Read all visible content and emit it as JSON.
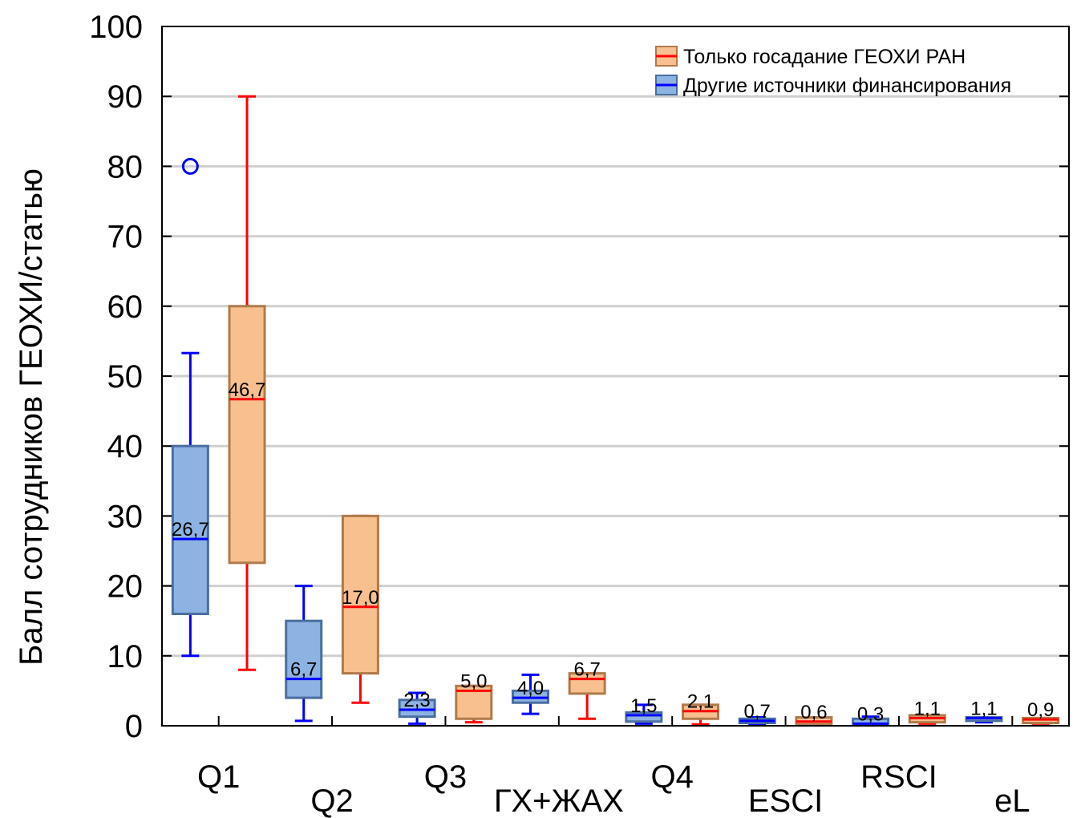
{
  "chart_data": {
    "type": "box",
    "ylabel": "Балл сотрудников ГЕОХИ/статью",
    "ylim": [
      0,
      100
    ],
    "yticks": [
      "0",
      "10",
      "20",
      "30",
      "40",
      "50",
      "60",
      "70",
      "80",
      "90",
      "100"
    ],
    "grid": true,
    "legend_position": "top-right",
    "categories": [
      "Q1",
      "Q2",
      "Q3",
      "ГХ+ЖАХ",
      "Q4",
      "ESCI",
      "RSCI",
      "eL"
    ],
    "series": [
      {
        "name": "Только госадание ГЕОХИ РАН",
        "box_color": "#f8c08f",
        "median_color": "#ff0000",
        "whisker_color": "#ff0000",
        "boxes": [
          {
            "min": 8,
            "q1": 23.3,
            "median": 46.7,
            "q3": 60,
            "max": 90,
            "median_label": "46,7"
          },
          {
            "min": 3.3,
            "q1": 7.5,
            "median": 17.0,
            "q3": 30,
            "max": 30,
            "median_label": "17,0"
          },
          {
            "min": 0.5,
            "q1": 1.0,
            "median": 5.0,
            "q3": 5.7,
            "max": 5.7,
            "median_label": "5,0"
          },
          {
            "min": 1.0,
            "q1": 4.6,
            "median": 6.7,
            "q3": 7.5,
            "max": 7.5,
            "median_label": "6,7"
          },
          {
            "min": 0.2,
            "q1": 1.0,
            "median": 2.1,
            "q3": 3.0,
            "max": 3.0,
            "median_label": "2,1"
          },
          {
            "min": 0.1,
            "q1": 0.2,
            "median": 0.6,
            "q3": 1.2,
            "max": 1.2,
            "median_label": "0,6"
          },
          {
            "min": 0.3,
            "q1": 0.5,
            "median": 1.1,
            "q3": 1.5,
            "max": 1.5,
            "median_label": "1,1"
          },
          {
            "min": 0.3,
            "q1": 0.4,
            "median": 0.9,
            "q3": 1.1,
            "max": 1.1,
            "median_label": "0,9"
          }
        ]
      },
      {
        "name": "Другие источники финансирования",
        "box_color": "#8db3e2",
        "median_color": "#0000ff",
        "whisker_color": "#0000ff",
        "boxes": [
          {
            "min": 10,
            "q1": 16,
            "median": 26.7,
            "q3": 40,
            "max": 53.3,
            "median_label": "26,7",
            "outliers": [
              80
            ]
          },
          {
            "min": 0.7,
            "q1": 4.0,
            "median": 6.7,
            "q3": 15,
            "max": 20,
            "median_label": "6,7"
          },
          {
            "min": 0.3,
            "q1": 1.3,
            "median": 2.3,
            "q3": 3.7,
            "max": 4.7,
            "median_label": "2,3"
          },
          {
            "min": 1.7,
            "q1": 3.3,
            "median": 4.0,
            "q3": 5.0,
            "max": 7.3,
            "median_label": "4,0"
          },
          {
            "min": 0.3,
            "q1": 0.6,
            "median": 1.5,
            "q3": 1.9,
            "max": 3.0,
            "median_label": "1,5"
          },
          {
            "min": 0.2,
            "q1": 0.4,
            "median": 0.7,
            "q3": 1.0,
            "max": 1.2,
            "median_label": "0,7"
          },
          {
            "min": 0.1,
            "q1": 0.2,
            "median": 0.3,
            "q3": 1.0,
            "max": 1.3,
            "median_label": "0,3"
          },
          {
            "min": 0.5,
            "q1": 0.7,
            "median": 1.1,
            "q3": 1.2,
            "max": 1.2,
            "median_label": "1,1"
          }
        ]
      }
    ]
  }
}
